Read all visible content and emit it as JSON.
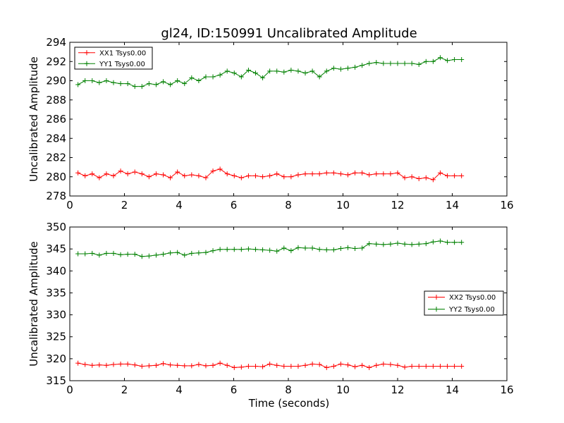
{
  "chart_data": [
    {
      "type": "line",
      "title": "gl24, ID:150991 Uncalibrated Amplitude",
      "xlabel": "",
      "ylabel": "Uncalibrated Amplitude",
      "xlim": [
        0,
        16
      ],
      "ylim": [
        278,
        294
      ],
      "xticks": [
        "0",
        "2",
        "4",
        "6",
        "8",
        "10",
        "12",
        "14",
        "16"
      ],
      "yticks": [
        "278",
        "280",
        "282",
        "284",
        "286",
        "288",
        "290",
        "292",
        "294"
      ],
      "legend_position": "top-left",
      "x": [
        0.3,
        0.56,
        0.82,
        1.08,
        1.34,
        1.6,
        1.86,
        2.12,
        2.38,
        2.64,
        2.9,
        3.16,
        3.42,
        3.68,
        3.94,
        4.2,
        4.46,
        4.72,
        4.98,
        5.24,
        5.5,
        5.76,
        6.02,
        6.28,
        6.54,
        6.8,
        7.06,
        7.32,
        7.58,
        7.84,
        8.1,
        8.36,
        8.62,
        8.88,
        9.14,
        9.4,
        9.66,
        9.92,
        10.18,
        10.44,
        10.7,
        10.96,
        11.22,
        11.48,
        11.74,
        12.0,
        12.26,
        12.52,
        12.78,
        13.04,
        13.3,
        13.56,
        13.82,
        14.08,
        14.34
      ],
      "series": [
        {
          "name": "XX1 Tsys0.00",
          "color": "#ff0000",
          "values": [
            280.4,
            280.1,
            280.3,
            279.9,
            280.3,
            280.1,
            280.6,
            280.3,
            280.5,
            280.3,
            280.0,
            280.3,
            280.2,
            279.9,
            280.5,
            280.1,
            280.2,
            280.1,
            279.9,
            280.6,
            280.8,
            280.3,
            280.1,
            279.9,
            280.1,
            280.1,
            280.0,
            280.1,
            280.3,
            280.0,
            280.0,
            280.2,
            280.3,
            280.3,
            280.3,
            280.4,
            280.4,
            280.3,
            280.2,
            280.4,
            280.4,
            280.2,
            280.3,
            280.3,
            280.3,
            280.4,
            279.9,
            280.0,
            279.8,
            279.9,
            279.7,
            280.4,
            280.1,
            280.1,
            280.1
          ]
        },
        {
          "name": "YY1 Tsys0.00",
          "color": "#008000",
          "values": [
            289.6,
            290.0,
            290.0,
            289.8,
            290.0,
            289.8,
            289.7,
            289.7,
            289.4,
            289.4,
            289.7,
            289.6,
            289.9,
            289.6,
            290.0,
            289.7,
            290.3,
            290.0,
            290.4,
            290.4,
            290.6,
            291.0,
            290.8,
            290.4,
            291.1,
            290.8,
            290.3,
            291.0,
            291.0,
            290.9,
            291.1,
            291.0,
            290.8,
            291.0,
            290.4,
            291.0,
            291.3,
            291.2,
            291.3,
            291.4,
            291.6,
            291.8,
            291.9,
            291.8,
            291.8,
            291.8,
            291.8,
            291.8,
            291.7,
            292.0,
            292.0,
            292.4,
            292.1,
            292.2,
            292.2
          ]
        }
      ]
    },
    {
      "type": "line",
      "title": "",
      "xlabel": "Time (seconds)",
      "ylabel": "Uncalibrated Amplitude",
      "xlim": [
        0,
        16
      ],
      "ylim": [
        315,
        350
      ],
      "xticks": [
        "0",
        "2",
        "4",
        "6",
        "8",
        "10",
        "12",
        "14",
        "16"
      ],
      "yticks": [
        "315",
        "320",
        "325",
        "330",
        "335",
        "340",
        "345",
        "350"
      ],
      "legend_position": "center-right",
      "x": [
        0.3,
        0.56,
        0.82,
        1.08,
        1.34,
        1.6,
        1.86,
        2.12,
        2.38,
        2.64,
        2.9,
        3.16,
        3.42,
        3.68,
        3.94,
        4.2,
        4.46,
        4.72,
        4.98,
        5.24,
        5.5,
        5.76,
        6.02,
        6.28,
        6.54,
        6.8,
        7.06,
        7.32,
        7.58,
        7.84,
        8.1,
        8.36,
        8.62,
        8.88,
        9.14,
        9.4,
        9.66,
        9.92,
        10.18,
        10.44,
        10.7,
        10.96,
        11.22,
        11.48,
        11.74,
        12.0,
        12.26,
        12.52,
        12.78,
        13.04,
        13.3,
        13.56,
        13.82,
        14.08,
        14.34
      ],
      "series": [
        {
          "name": "XX2 Tsys0.00",
          "color": "#ff0000",
          "values": [
            319.0,
            318.7,
            318.5,
            318.6,
            318.5,
            318.7,
            318.8,
            318.8,
            318.6,
            318.3,
            318.4,
            318.5,
            318.9,
            318.6,
            318.5,
            318.4,
            318.4,
            318.7,
            318.4,
            318.5,
            319.0,
            318.5,
            318.0,
            318.1,
            318.3,
            318.3,
            318.2,
            318.8,
            318.5,
            318.3,
            318.3,
            318.3,
            318.5,
            318.8,
            318.7,
            318.0,
            318.3,
            318.8,
            318.6,
            318.2,
            318.5,
            318.0,
            318.5,
            318.8,
            318.7,
            318.5,
            318.1,
            318.3,
            318.3,
            318.3,
            318.3,
            318.3,
            318.3,
            318.3,
            318.3
          ]
        },
        {
          "name": "YY2 Tsys0.00",
          "color": "#008000",
          "values": [
            343.9,
            343.9,
            344.0,
            343.6,
            344.0,
            344.0,
            343.7,
            343.8,
            343.8,
            343.3,
            343.4,
            343.6,
            343.8,
            344.1,
            344.2,
            343.6,
            344.0,
            344.1,
            344.2,
            344.6,
            344.9,
            344.9,
            344.9,
            344.9,
            345.0,
            344.9,
            344.8,
            344.7,
            344.5,
            345.2,
            344.6,
            345.3,
            345.2,
            345.2,
            344.9,
            344.8,
            344.8,
            345.1,
            345.3,
            345.1,
            345.2,
            346.2,
            346.1,
            346.0,
            346.1,
            346.3,
            346.1,
            346.0,
            346.1,
            346.2,
            346.6,
            346.8,
            346.5,
            346.5,
            346.5
          ]
        }
      ]
    }
  ]
}
